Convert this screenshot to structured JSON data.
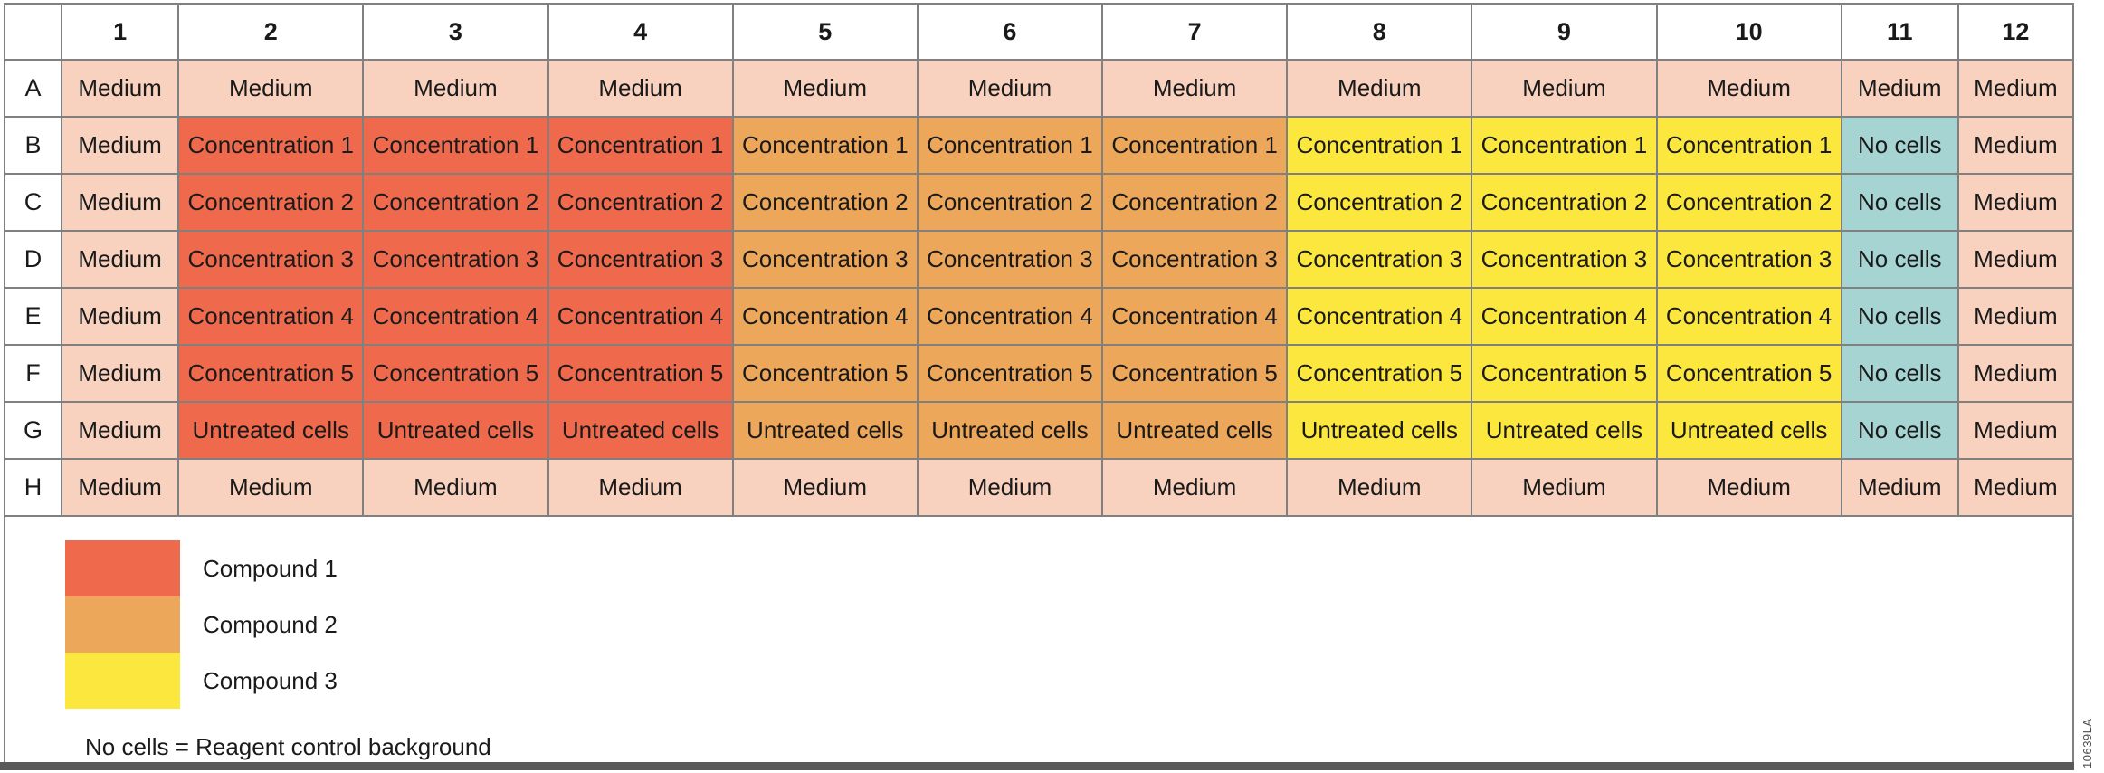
{
  "figure": {
    "colors": {
      "medium": "#F8D2BF",
      "compound1": "#EF6A4C",
      "compound2": "#EDA75A",
      "compound3": "#FCE73E",
      "nocells": "#A5D4D2",
      "grid": "#808080",
      "bar": "#595959",
      "text": "#1a1a1a"
    },
    "plate": {
      "corner_label": "",
      "column_headers": [
        "1",
        "2",
        "3",
        "4",
        "5",
        "6",
        "7",
        "8",
        "9",
        "10",
        "11",
        "12"
      ],
      "rows": [
        {
          "label": "A",
          "cells": [
            {
              "text": "Medium",
              "type": "medium"
            },
            {
              "text": "Medium",
              "type": "medium"
            },
            {
              "text": "Medium",
              "type": "medium"
            },
            {
              "text": "Medium",
              "type": "medium"
            },
            {
              "text": "Medium",
              "type": "medium"
            },
            {
              "text": "Medium",
              "type": "medium"
            },
            {
              "text": "Medium",
              "type": "medium"
            },
            {
              "text": "Medium",
              "type": "medium"
            },
            {
              "text": "Medium",
              "type": "medium"
            },
            {
              "text": "Medium",
              "type": "medium"
            },
            {
              "text": "Medium",
              "type": "medium"
            },
            {
              "text": "Medium",
              "type": "medium"
            }
          ]
        },
        {
          "label": "B",
          "cells": [
            {
              "text": "Medium",
              "type": "medium"
            },
            {
              "text": "Concentration 1",
              "type": "compound1"
            },
            {
              "text": "Concentration 1",
              "type": "compound1"
            },
            {
              "text": "Concentration 1",
              "type": "compound1"
            },
            {
              "text": "Concentration 1",
              "type": "compound2"
            },
            {
              "text": "Concentration 1",
              "type": "compound2"
            },
            {
              "text": "Concentration 1",
              "type": "compound2"
            },
            {
              "text": "Concentration 1",
              "type": "compound3"
            },
            {
              "text": "Concentration 1",
              "type": "compound3"
            },
            {
              "text": "Concentration 1",
              "type": "compound3"
            },
            {
              "text": "No cells",
              "type": "nocells"
            },
            {
              "text": "Medium",
              "type": "medium"
            }
          ]
        },
        {
          "label": "C",
          "cells": [
            {
              "text": "Medium",
              "type": "medium"
            },
            {
              "text": "Concentration 2",
              "type": "compound1"
            },
            {
              "text": "Concentration 2",
              "type": "compound1"
            },
            {
              "text": "Concentration 2",
              "type": "compound1"
            },
            {
              "text": "Concentration 2",
              "type": "compound2"
            },
            {
              "text": "Concentration 2",
              "type": "compound2"
            },
            {
              "text": "Concentration 2",
              "type": "compound2"
            },
            {
              "text": "Concentration 2",
              "type": "compound3"
            },
            {
              "text": "Concentration 2",
              "type": "compound3"
            },
            {
              "text": "Concentration 2",
              "type": "compound3"
            },
            {
              "text": "No cells",
              "type": "nocells"
            },
            {
              "text": "Medium",
              "type": "medium"
            }
          ]
        },
        {
          "label": "D",
          "cells": [
            {
              "text": "Medium",
              "type": "medium"
            },
            {
              "text": "Concentration 3",
              "type": "compound1"
            },
            {
              "text": "Concentration 3",
              "type": "compound1"
            },
            {
              "text": "Concentration 3",
              "type": "compound1"
            },
            {
              "text": "Concentration 3",
              "type": "compound2"
            },
            {
              "text": "Concentration 3",
              "type": "compound2"
            },
            {
              "text": "Concentration 3",
              "type": "compound2"
            },
            {
              "text": "Concentration 3",
              "type": "compound3"
            },
            {
              "text": "Concentration 3",
              "type": "compound3"
            },
            {
              "text": "Concentration 3",
              "type": "compound3"
            },
            {
              "text": "No cells",
              "type": "nocells"
            },
            {
              "text": "Medium",
              "type": "medium"
            }
          ]
        },
        {
          "label": "E",
          "cells": [
            {
              "text": "Medium",
              "type": "medium"
            },
            {
              "text": "Concentration 4",
              "type": "compound1"
            },
            {
              "text": "Concentration 4",
              "type": "compound1"
            },
            {
              "text": "Concentration 4",
              "type": "compound1"
            },
            {
              "text": "Concentration 4",
              "type": "compound2"
            },
            {
              "text": "Concentration 4",
              "type": "compound2"
            },
            {
              "text": "Concentration 4",
              "type": "compound2"
            },
            {
              "text": "Concentration 4",
              "type": "compound3"
            },
            {
              "text": "Concentration 4",
              "type": "compound3"
            },
            {
              "text": "Concentration 4",
              "type": "compound3"
            },
            {
              "text": "No cells",
              "type": "nocells"
            },
            {
              "text": "Medium",
              "type": "medium"
            }
          ]
        },
        {
          "label": "F",
          "cells": [
            {
              "text": "Medium",
              "type": "medium"
            },
            {
              "text": "Concentration 5",
              "type": "compound1"
            },
            {
              "text": "Concentration 5",
              "type": "compound1"
            },
            {
              "text": "Concentration 5",
              "type": "compound1"
            },
            {
              "text": "Concentration 5",
              "type": "compound2"
            },
            {
              "text": "Concentration 5",
              "type": "compound2"
            },
            {
              "text": "Concentration 5",
              "type": "compound2"
            },
            {
              "text": "Concentration 5",
              "type": "compound3"
            },
            {
              "text": "Concentration 5",
              "type": "compound3"
            },
            {
              "text": "Concentration 5",
              "type": "compound3"
            },
            {
              "text": "No cells",
              "type": "nocells"
            },
            {
              "text": "Medium",
              "type": "medium"
            }
          ]
        },
        {
          "label": "G",
          "cells": [
            {
              "text": "Medium",
              "type": "medium"
            },
            {
              "text": "Untreated cells",
              "type": "compound1"
            },
            {
              "text": "Untreated cells",
              "type": "compound1"
            },
            {
              "text": "Untreated cells",
              "type": "compound1"
            },
            {
              "text": "Untreated cells",
              "type": "compound2"
            },
            {
              "text": "Untreated cells",
              "type": "compound2"
            },
            {
              "text": "Untreated cells",
              "type": "compound2"
            },
            {
              "text": "Untreated cells",
              "type": "compound3"
            },
            {
              "text": "Untreated cells",
              "type": "compound3"
            },
            {
              "text": "Untreated cells",
              "type": "compound3"
            },
            {
              "text": "No cells",
              "type": "nocells"
            },
            {
              "text": "Medium",
              "type": "medium"
            }
          ]
        },
        {
          "label": "H",
          "cells": [
            {
              "text": "Medium",
              "type": "medium"
            },
            {
              "text": "Medium",
              "type": "medium"
            },
            {
              "text": "Medium",
              "type": "medium"
            },
            {
              "text": "Medium",
              "type": "medium"
            },
            {
              "text": "Medium",
              "type": "medium"
            },
            {
              "text": "Medium",
              "type": "medium"
            },
            {
              "text": "Medium",
              "type": "medium"
            },
            {
              "text": "Medium",
              "type": "medium"
            },
            {
              "text": "Medium",
              "type": "medium"
            },
            {
              "text": "Medium",
              "type": "medium"
            },
            {
              "text": "Medium",
              "type": "medium"
            },
            {
              "text": "Medium",
              "type": "medium"
            }
          ]
        }
      ]
    },
    "legend": {
      "items": [
        {
          "label": "Compound 1",
          "type": "compound1"
        },
        {
          "label": "Compound 2",
          "type": "compound2"
        },
        {
          "label": "Compound 3",
          "type": "compound3"
        }
      ],
      "note": "No cells = Reagent control background"
    },
    "watermark": "10639LA"
  }
}
